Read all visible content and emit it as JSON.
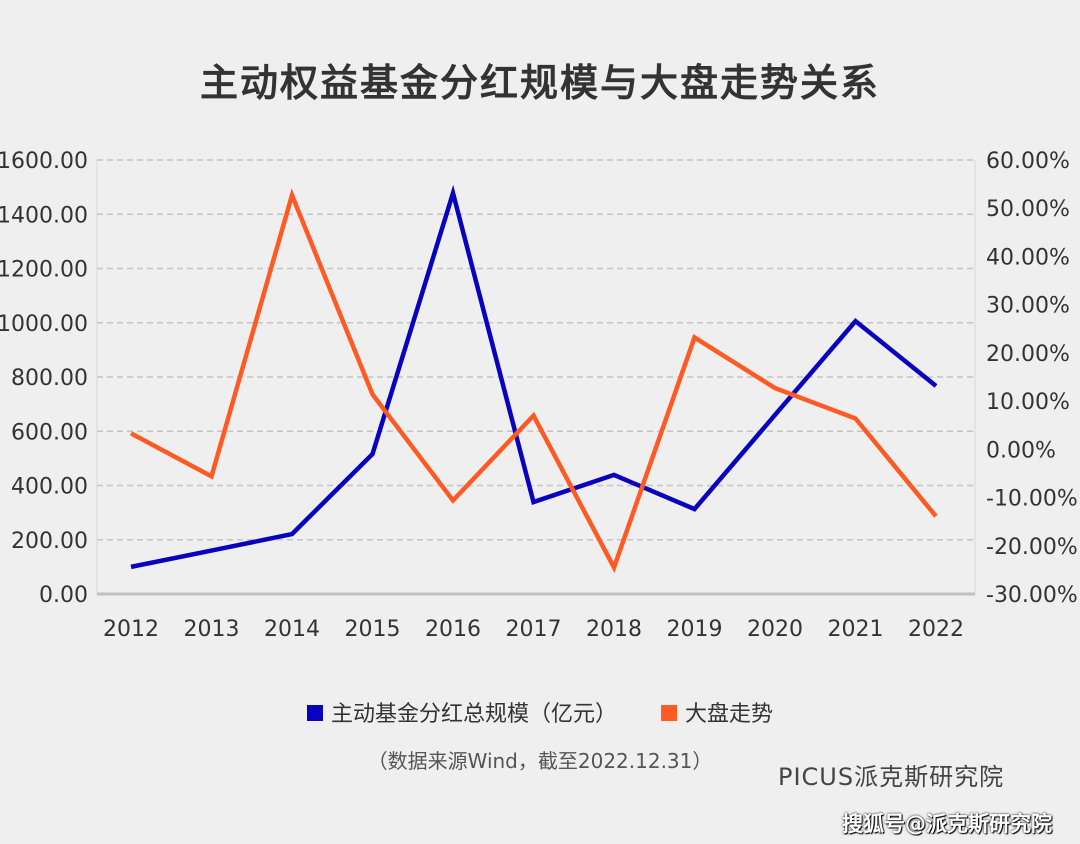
{
  "title": "主动权益基金分红规模与大盘走势关系",
  "source_note": "（数据来源Wind，截至2022.12.31）",
  "logo": "PICUS派克斯研究院",
  "watermark": "搜狐号@派克斯研究院",
  "chart_data": {
    "type": "line",
    "title": "主动权益基金分红规模与大盘走势关系",
    "categories": [
      "2012",
      "2013",
      "2014",
      "2015",
      "2016",
      "2017",
      "2018",
      "2019",
      "2020",
      "2021",
      "2022"
    ],
    "y_left": {
      "range": [
        0,
        1600
      ],
      "ticks": [
        "0.00",
        "200.00",
        "400.00",
        "600.00",
        "800.00",
        "1000.00",
        "1200.00",
        "1400.00",
        "1600.00"
      ]
    },
    "y_right": {
      "range": [
        -30,
        60
      ],
      "unit": "%",
      "ticks": [
        "-30.00%",
        "-20.00%",
        "-10.00%",
        "0.00%",
        "10.00%",
        "20.00%",
        "30.00%",
        "40.00%",
        "50.00%",
        "60.00%"
      ]
    },
    "grid": true,
    "legend_placement": "bottom",
    "series": [
      {
        "name": "主动基金分红总规模（亿元）",
        "axis": "left",
        "color": "#0a00c0",
        "values": [
          100,
          160,
          221,
          516,
          1478,
          339,
          439,
          313,
          660,
          1006,
          767
        ]
      },
      {
        "name": "大盘走势",
        "axis": "right",
        "color": "#ff5a24",
        "values": [
          3.3,
          -5.6,
          52.7,
          11.4,
          -10.6,
          7.0,
          -24.5,
          23.2,
          12.7,
          6.4,
          -13.9
        ]
      }
    ]
  }
}
